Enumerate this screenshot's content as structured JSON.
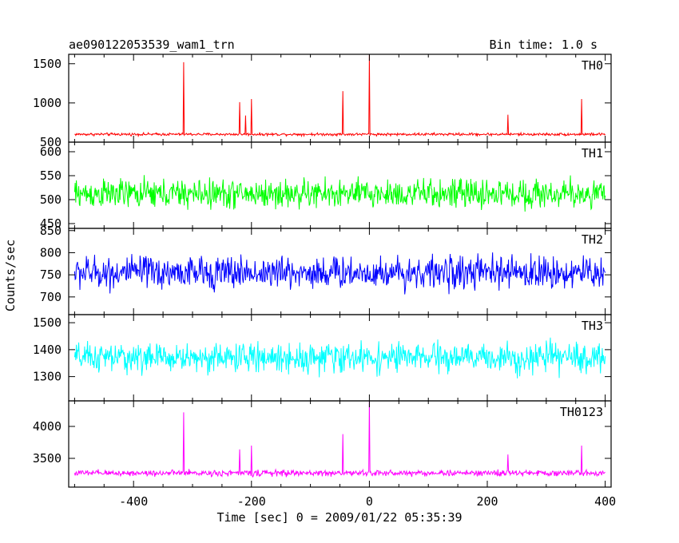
{
  "chart_data": {
    "type": "line",
    "title": "ae090122053539_wam1_trn",
    "bin_time": "Bin time: 1.0 s",
    "xlabel": "Time [sec] 0 = 2009/01/22 05:35:39",
    "ylabel": "Counts/sec",
    "xlim": [
      -510,
      410
    ],
    "x_ticks": [
      -400,
      -200,
      0,
      200,
      400
    ],
    "panels": [
      {
        "name": "TH0",
        "color": "#ff0000",
        "ylim": [
          500,
          1620
        ],
        "y_ticks": [
          500,
          1000,
          1500
        ],
        "x_range": [
          -500,
          400
        ],
        "baseline": 600,
        "noise": 25,
        "spikes": [
          {
            "x": -315,
            "y": 1520
          },
          {
            "x": -220,
            "y": 1010
          },
          {
            "x": -210,
            "y": 840
          },
          {
            "x": -200,
            "y": 1050
          },
          {
            "x": -45,
            "y": 1150
          },
          {
            "x": 0,
            "y": 1620
          },
          {
            "x": 235,
            "y": 850
          },
          {
            "x": 360,
            "y": 1050
          }
        ]
      },
      {
        "name": "TH1",
        "color": "#00ff00",
        "ylim": [
          440,
          620
        ],
        "y_ticks": [
          450,
          500,
          550,
          600
        ],
        "x_range": [
          -500,
          400
        ],
        "baseline": 512,
        "noise": 45,
        "spikes": []
      },
      {
        "name": "TH2",
        "color": "#0000ff",
        "ylim": [
          660,
          855
        ],
        "y_ticks": [
          700,
          750,
          800,
          850
        ],
        "x_range": [
          -500,
          400
        ],
        "baseline": 755,
        "noise": 55,
        "spikes": []
      },
      {
        "name": "TH3",
        "color": "#00ffff",
        "ylim": [
          1210,
          1530
        ],
        "y_ticks": [
          1300,
          1400,
          1500
        ],
        "x_range": [
          -500,
          400
        ],
        "baseline": 1370,
        "noise": 80,
        "spikes": []
      },
      {
        "name": "TH0123",
        "color": "#ff00ff",
        "ylim": [
          3050,
          4400
        ],
        "y_ticks": [
          3500,
          4000
        ],
        "x_range": [
          -500,
          400
        ],
        "baseline": 3270,
        "noise": 70,
        "spikes": [
          {
            "x": -315,
            "y": 4220
          },
          {
            "x": -220,
            "y": 3640
          },
          {
            "x": -200,
            "y": 3700
          },
          {
            "x": -45,
            "y": 3880
          },
          {
            "x": 0,
            "y": 4400
          },
          {
            "x": 235,
            "y": 3560
          },
          {
            "x": 360,
            "y": 3700
          }
        ]
      }
    ]
  }
}
